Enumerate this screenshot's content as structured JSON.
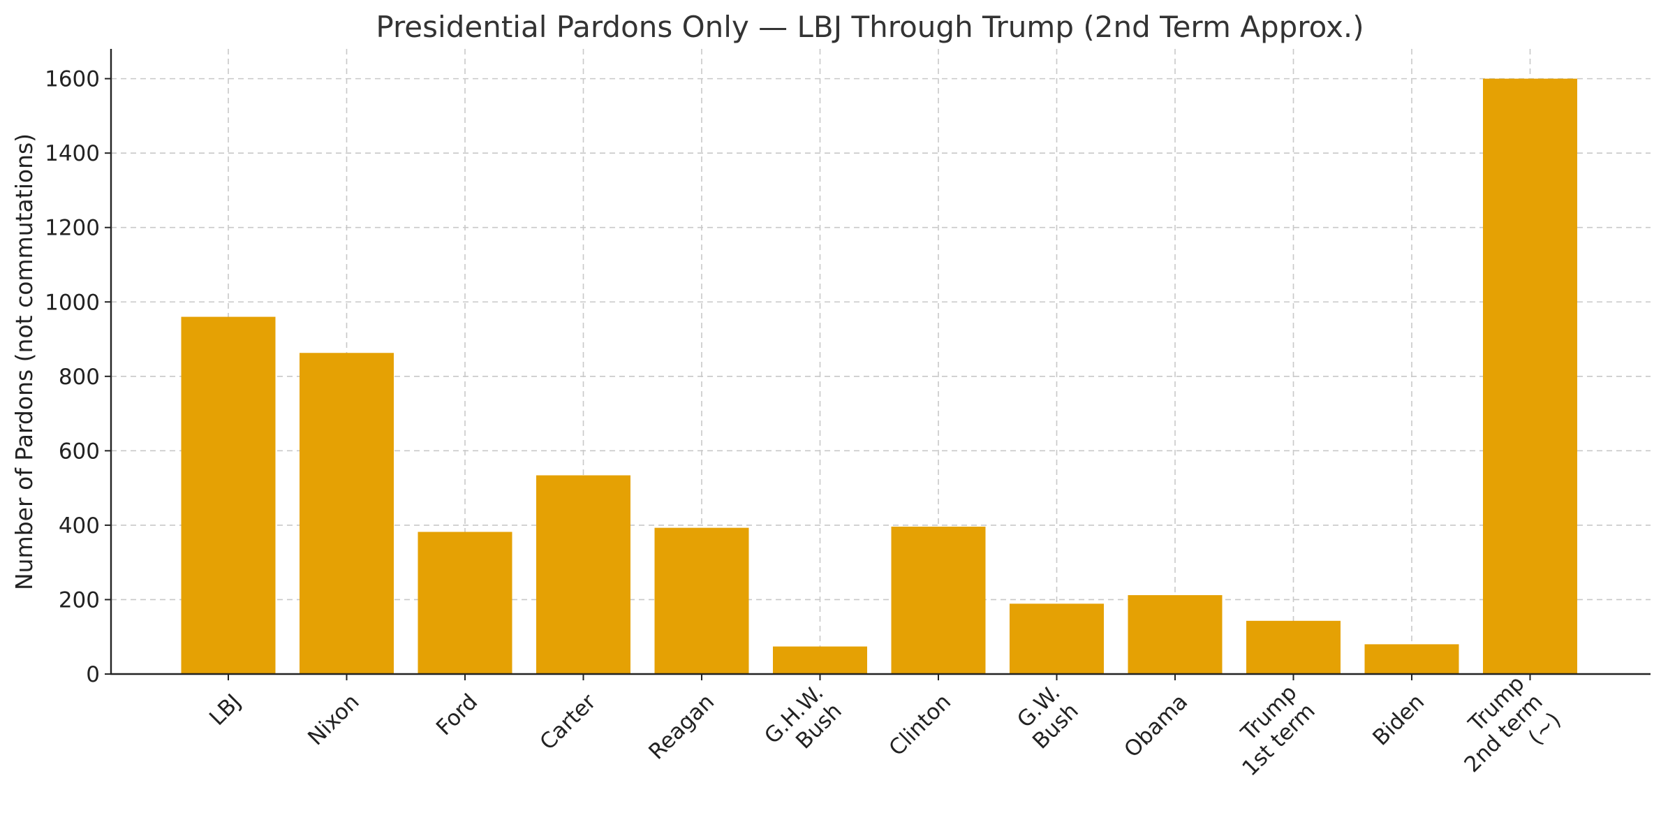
{
  "chart_data": {
    "type": "bar",
    "title": "Presidential Pardons Only — LBJ Through Trump (2nd Term Approx.)",
    "xlabel": "",
    "ylabel": "Number of Pardons (not commutations)",
    "ylim": [
      0,
      1680
    ],
    "yticks": [
      0,
      200,
      400,
      600,
      800,
      1000,
      1200,
      1400,
      1600
    ],
    "grid": true,
    "bar_color": "#E5A104",
    "categories": [
      [
        "LBJ"
      ],
      [
        "Nixon"
      ],
      [
        "Ford"
      ],
      [
        "Carter"
      ],
      [
        "Reagan"
      ],
      [
        "G.H.W.",
        "Bush"
      ],
      [
        "Clinton"
      ],
      [
        "G.W.",
        "Bush"
      ],
      [
        "Obama"
      ],
      [
        "Trump",
        "1st term"
      ],
      [
        "Biden"
      ],
      [
        "Trump",
        "2nd term",
        "(~)"
      ]
    ],
    "values": [
      960,
      863,
      382,
      534,
      393,
      74,
      396,
      189,
      212,
      143,
      80,
      1600
    ]
  }
}
